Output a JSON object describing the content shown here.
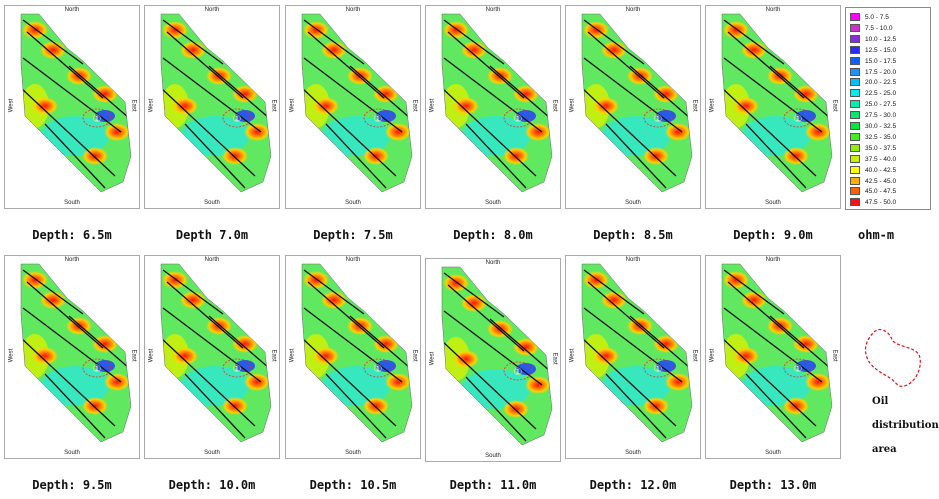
{
  "direction_labels": {
    "north": "North",
    "south": "South",
    "west": "West",
    "east": "East"
  },
  "panels": [
    {
      "depth": "Depth: 6.5m",
      "anomaly": "①"
    },
    {
      "depth": "Depth 7.0m",
      "anomaly": "①"
    },
    {
      "depth": "Depth: 7.5m",
      "anomaly": "①"
    },
    {
      "depth": "Depth: 8.0m",
      "anomaly": "①"
    },
    {
      "depth": "Depth: 8.5m",
      "anomaly": "①"
    },
    {
      "depth": "Depth: 9.0m",
      "anomaly": "①"
    },
    {
      "depth": "Depth: 9.5m",
      "anomaly": "①"
    },
    {
      "depth": "Depth: 10.0m",
      "anomaly": "①"
    },
    {
      "depth": "Depth: 10.5m",
      "anomaly": "①"
    },
    {
      "depth": "Depth: 11.0m",
      "anomaly": "①"
    },
    {
      "depth": "Depth: 12.0m",
      "anomaly": "①"
    },
    {
      "depth": "Depth: 13.0m",
      "anomaly": "①"
    }
  ],
  "legend": {
    "unit": "ohm-m",
    "items": [
      {
        "label": "5.0 - 7.5",
        "color": "#ff00ff"
      },
      {
        "label": "7.5 - 10.0",
        "color": "#cc33cc"
      },
      {
        "label": "10.0 - 12.5",
        "color": "#8a2be2"
      },
      {
        "label": "12.5 - 15.0",
        "color": "#2a2aff"
      },
      {
        "label": "15.0 - 17.5",
        "color": "#1060ff"
      },
      {
        "label": "17.5 - 20.0",
        "color": "#1e90ff"
      },
      {
        "label": "20.0 - 22.5",
        "color": "#00c0ff"
      },
      {
        "label": "22.5 - 25.0",
        "color": "#00f0f0"
      },
      {
        "label": "25.0 - 27.5",
        "color": "#00f0b0"
      },
      {
        "label": "27.5 - 30.0",
        "color": "#00e870"
      },
      {
        "label": "30.0 - 32.5",
        "color": "#00e840"
      },
      {
        "label": "32.5 - 35.0",
        "color": "#40f020"
      },
      {
        "label": "35.0 - 37.5",
        "color": "#90f000"
      },
      {
        "label": "37.5 - 40.0",
        "color": "#c8f000"
      },
      {
        "label": "40.0 - 42.5",
        "color": "#ffff00"
      },
      {
        "label": "42.5 - 45.0",
        "color": "#ffb000"
      },
      {
        "label": "45.0 - 47.5",
        "color": "#ff6000"
      },
      {
        "label": "47.5 - 50.0",
        "color": "#ff1010"
      }
    ]
  },
  "oil_legend": {
    "line1": "Oil",
    "line2": "distribution",
    "line3": "area"
  }
}
